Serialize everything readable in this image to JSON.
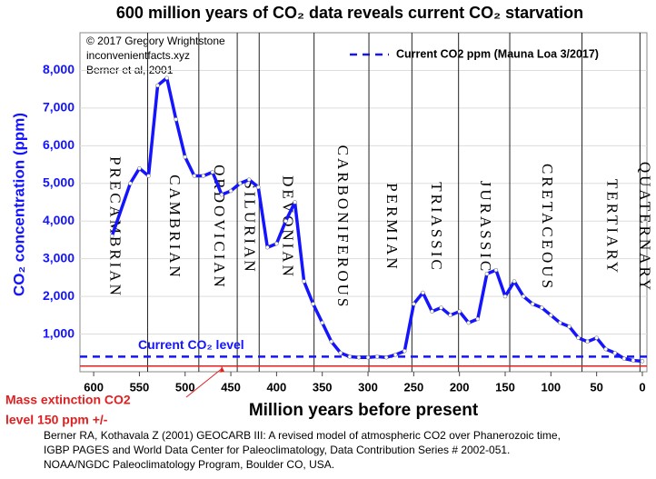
{
  "chart_data": {
    "type": "line",
    "title": "600 million years of CO₂ data reveals current CO₂ starvation",
    "credits": [
      "© 2017 Gregory Wrightstone",
      "inconvenientfacts.xyz",
      "Berner et al, 2001"
    ],
    "x_label": "Million years before present",
    "y_label": "CO₂ concentration (ppm)",
    "x": [
      580,
      560,
      550,
      540,
      530,
      520,
      510,
      500,
      490,
      480,
      470,
      460,
      450,
      440,
      430,
      420,
      410,
      400,
      390,
      380,
      370,
      360,
      350,
      340,
      330,
      320,
      310,
      300,
      290,
      280,
      270,
      260,
      250,
      240,
      230,
      220,
      210,
      200,
      190,
      180,
      170,
      160,
      150,
      140,
      130,
      120,
      110,
      100,
      90,
      80,
      70,
      60,
      50,
      40,
      30,
      20,
      10,
      0
    ],
    "series": [
      {
        "name": "CO2",
        "color": "#1414ff",
        "values": [
          3600,
          5000,
          5400,
          5200,
          7600,
          7800,
          6700,
          5700,
          5200,
          5200,
          5300,
          4700,
          4800,
          5000,
          5100,
          4900,
          3300,
          3400,
          4000,
          4500,
          2400,
          1800,
          1300,
          800,
          500,
          400,
          380,
          380,
          400,
          380,
          450,
          550,
          1800,
          2100,
          1600,
          1700,
          1500,
          1600,
          1300,
          1400,
          2600,
          2700,
          2000,
          2400,
          2000,
          1800,
          1700,
          1500,
          1300,
          1200,
          900,
          800,
          900,
          600,
          500,
          350,
          300,
          280
        ]
      }
    ],
    "reference_lines": [
      {
        "name": "Current CO2 ppm (Mauna Loa 3/2017)",
        "label": "Current CO₂ level",
        "value": 400,
        "color": "#1414ff"
      },
      {
        "value": 150,
        "color": "#e02020"
      }
    ],
    "annotation": [
      "Mass extinction CO2",
      "level 150 ppm +/-"
    ],
    "periods": [
      "PRECAMBRIAN",
      "CAMBRIAN",
      "ORDOVICIAN",
      "SILURIAN",
      "DEVONIAN",
      "CARBONIFEROUS",
      "PERMIAN",
      "TRIASSIC",
      "JURASSIC",
      "CRETACEOUS",
      "TERTIARY",
      "QUATERNARY"
    ],
    "period_boundaries": [
      541,
      485,
      443,
      419,
      359,
      299,
      252,
      201,
      145,
      66,
      2.6
    ],
    "xlim": [
      615,
      -5
    ],
    "ylim": [
      0,
      9000
    ],
    "xticks": [
      600,
      550,
      500,
      450,
      400,
      350,
      300,
      250,
      200,
      150,
      100,
      50,
      0
    ],
    "yticks": [
      {
        "value": 1000,
        "label": "1,000"
      },
      {
        "value": 2000,
        "label": "2,000"
      },
      {
        "value": 3000,
        "label": "3,000"
      },
      {
        "value": 4000,
        "label": "4,000"
      },
      {
        "value": 5000,
        "label": "5,000"
      },
      {
        "value": 6000,
        "label": "6,000"
      },
      {
        "value": 7000,
        "label": "7,000"
      },
      {
        "value": 8000,
        "label": "8,000"
      }
    ],
    "grid": true,
    "source": [
      "Berner RA, Kothavala Z (2001) GEOCARB III: A revised model of atmospheric CO2 over Phanerozoic time,",
      "IGBP PAGES and World Data Center for Paleoclimatology, Data Contribution Series # 2002-051.",
      "NOAA/NGDC Paleoclimatology Program, Boulder CO, USA."
    ]
  }
}
